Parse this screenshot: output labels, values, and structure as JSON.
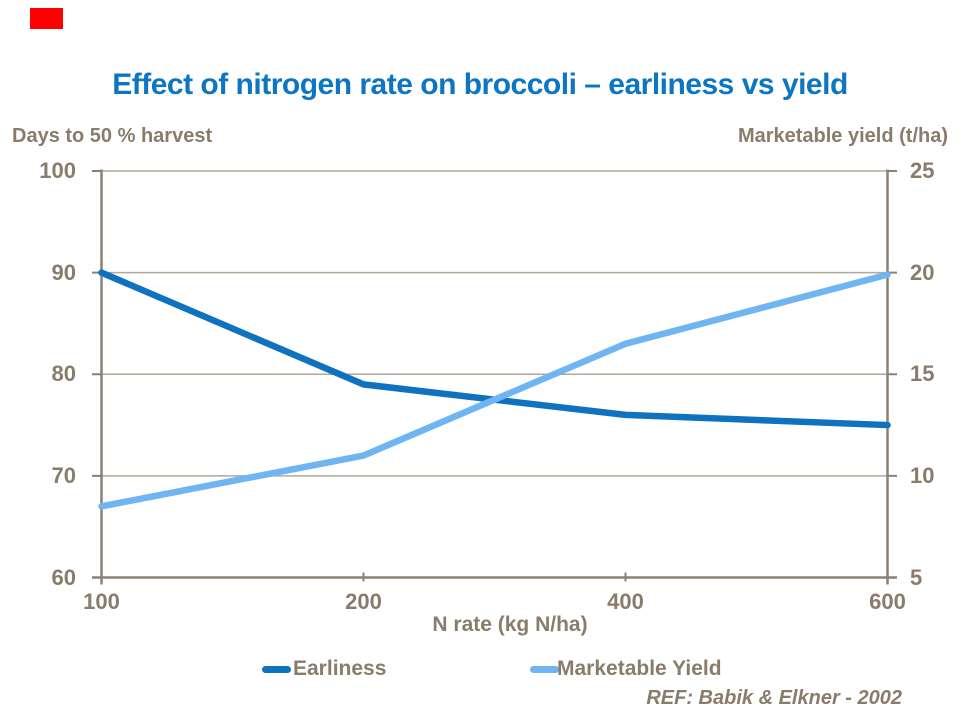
{
  "reference": "REF: Babik & Elkner - 2002",
  "colors": {
    "title_blue": "#0C76C2",
    "earliness_blue": "#0F72BE",
    "yield_light_blue": "#6FB5F2",
    "axis_text_brown": "#8A7C6A",
    "axis_line": "#8B8173",
    "gridline": "#B2A899",
    "accent_red": "#FF0000"
  },
  "chart_data": {
    "type": "line",
    "title": "Effect of nitrogen rate on broccoli – earliness vs yield",
    "categories": [
      100,
      200,
      400,
      600
    ],
    "xlabel": "N rate (kg N/ha)",
    "left_axis": {
      "title": "Days to 50 % harvest",
      "range": [
        60,
        100
      ],
      "ticks": [
        100,
        90,
        80,
        70,
        60
      ]
    },
    "right_axis": {
      "title": "Marketable yield (t/ha)",
      "range": [
        5,
        25
      ],
      "ticks": [
        25,
        20,
        15,
        10,
        5
      ]
    },
    "series": [
      {
        "name": "Earliness",
        "axis": "left",
        "color": "#0F72BE",
        "values": [
          90,
          79,
          76,
          75
        ]
      },
      {
        "name": "Marketable Yield",
        "axis": "right",
        "color": "#6FB5F2",
        "values": [
          8.5,
          11,
          16.5,
          19.9
        ]
      }
    ],
    "grid": true,
    "legend_position": "bottom"
  }
}
